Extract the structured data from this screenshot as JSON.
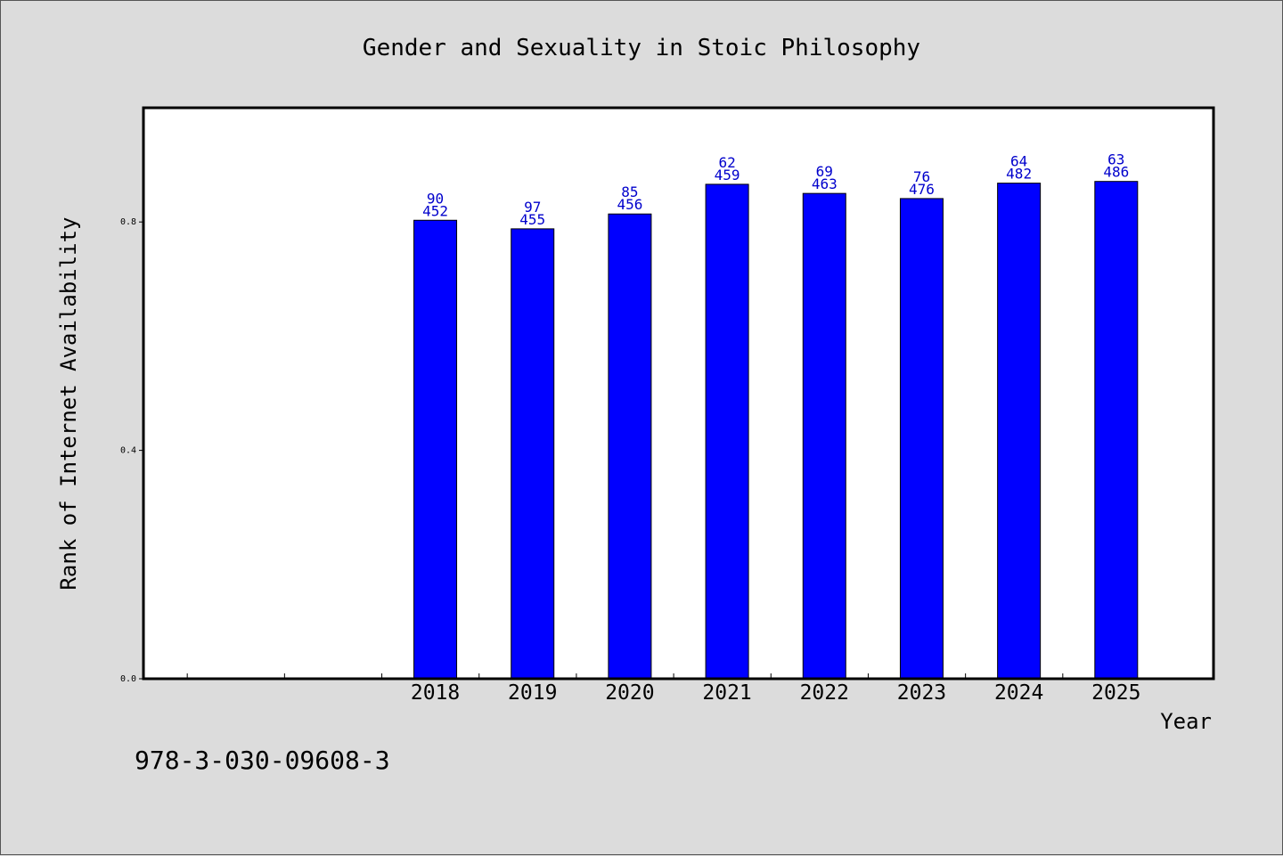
{
  "chart_data": {
    "type": "bar",
    "title": "Gender and Sexuality in Stoic Philosophy",
    "xlabel": "Year",
    "ylabel": "Rank of Internet Availability",
    "categories": [
      "2018",
      "2019",
      "2020",
      "2021",
      "2022",
      "2023",
      "2024",
      "2025"
    ],
    "category_positions": [
      2018,
      2019,
      2020,
      2021,
      2022,
      2023,
      2024,
      2025
    ],
    "xlim": [
      2015,
      2026
    ],
    "extra_xticks": [
      2016,
      2017
    ],
    "values": [
      0.803,
      0.788,
      0.814,
      0.866,
      0.85,
      0.841,
      0.868,
      0.871
    ],
    "bar_labels": [
      [
        "90",
        "452"
      ],
      [
        "97",
        "455"
      ],
      [
        "85",
        "456"
      ],
      [
        "62",
        "459"
      ],
      [
        "69",
        "463"
      ],
      [
        "76",
        "476"
      ],
      [
        "64",
        "482"
      ],
      [
        "63",
        "486"
      ]
    ],
    "ylim": [
      0.0,
      1.0
    ],
    "yticks": [
      "0.0",
      "0.4",
      "0.8"
    ],
    "bar_color": "#0000ff",
    "label_color": "#0000cc",
    "grid": false,
    "legend": "none"
  },
  "footer": {
    "isbn": "978-3-030-09608-3"
  }
}
